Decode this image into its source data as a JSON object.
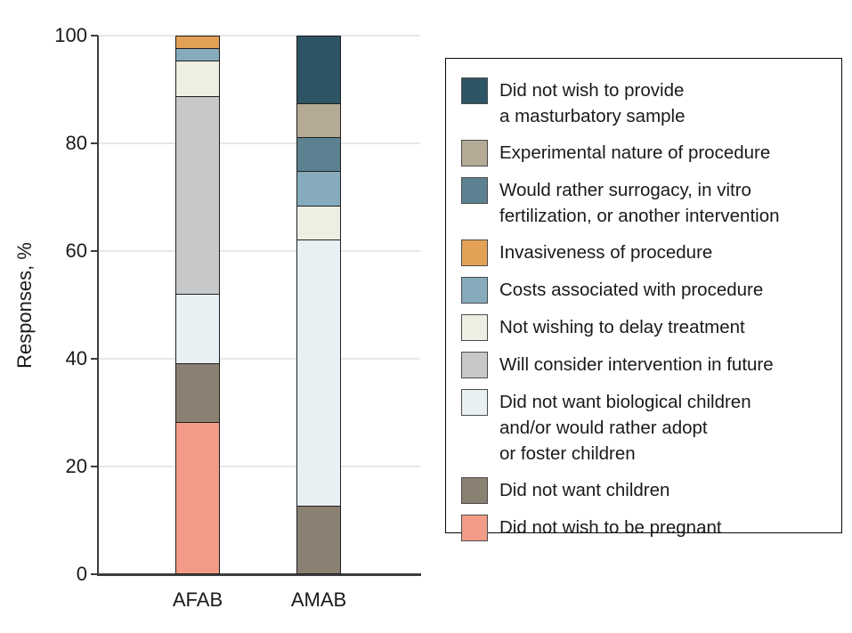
{
  "chart_data": {
    "type": "bar",
    "variant": "stacked-vertical",
    "title": "",
    "xlabel": "",
    "ylabel": "Responses, %",
    "ylim": [
      0,
      100
    ],
    "yticks": [
      0,
      20,
      40,
      60,
      80,
      100
    ],
    "grid": true,
    "legend_position": "right",
    "categories": [
      "AFAB",
      "AMAB"
    ],
    "series": [
      {
        "name": "Did not wish to provide a masturbatory sample",
        "legend_lines": [
          "Did not wish to provide",
          "a masturbatory sample"
        ],
        "color": "#2E5565",
        "values": [
          0,
          12.5
        ]
      },
      {
        "name": "Experimental nature of procedure",
        "legend_lines": [
          "Experimental nature of procedure"
        ],
        "color": "#B4AA96",
        "values": [
          0,
          6.25
        ]
      },
      {
        "name": "Would rather surrogacy, in vitro fertilization, or another intervention",
        "legend_lines": [
          "Would rather surrogacy, in vitro",
          "fertilization, or another intervention"
        ],
        "color": "#5C8191",
        "values": [
          0,
          6.25
        ]
      },
      {
        "name": "Invasiveness of procedure",
        "legend_lines": [
          "Invasiveness of procedure"
        ],
        "color": "#E2A157",
        "values": [
          2.2,
          0
        ]
      },
      {
        "name": "Costs associated with procedure",
        "legend_lines": [
          "Costs associated with procedure"
        ],
        "color": "#85ABBD",
        "values": [
          2.2,
          6.25
        ]
      },
      {
        "name": "Not wishing to delay treatment",
        "legend_lines": [
          "Not wishing to delay treatment"
        ],
        "color": "#EFEEE3",
        "values": [
          6.5,
          6.25
        ]
      },
      {
        "name": "Will consider intervention in future",
        "legend_lines": [
          "Will consider intervention in future"
        ],
        "color": "#C7C8CA",
        "values": [
          37.0,
          0
        ]
      },
      {
        "name": "Did not want biological children and/or would rather adopt or foster children",
        "legend_lines": [
          "Did not want biological children",
          "and/or would rather adopt",
          "or foster children"
        ],
        "color": "#E9F0F4",
        "values": [
          13.0,
          50.0
        ]
      },
      {
        "name": "Did not want children",
        "legend_lines": [
          "Did not want children"
        ],
        "color": "#8A8172",
        "values": [
          10.9,
          12.5
        ]
      },
      {
        "name": "Did not wish to be pregnant",
        "legend_lines": [
          "Did not wish to be pregnant"
        ],
        "color": "#F29C88",
        "values": [
          28.3,
          0
        ]
      }
    ]
  }
}
